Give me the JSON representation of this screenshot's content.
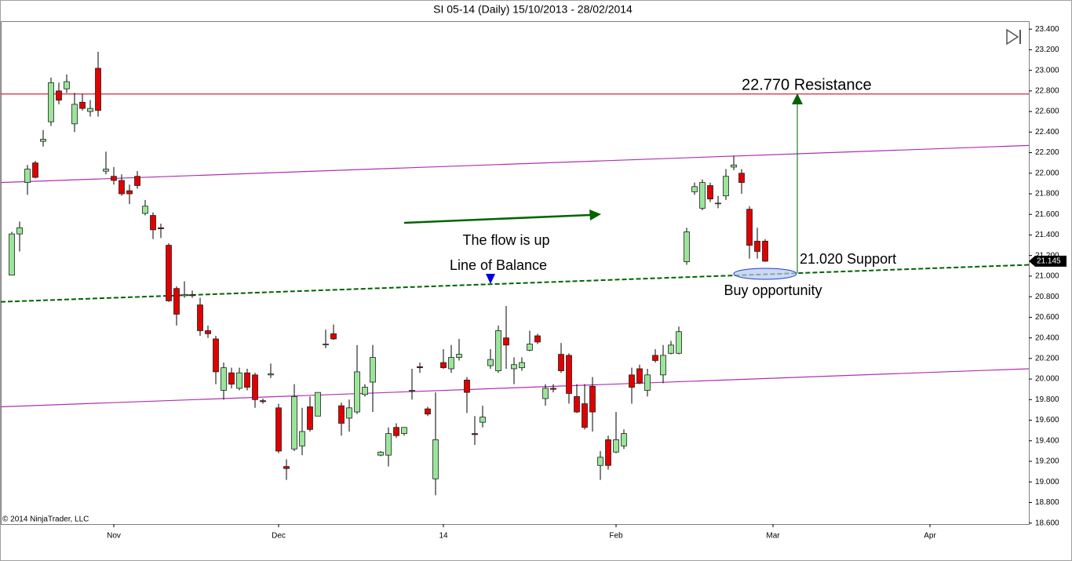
{
  "chart_data": {
    "type": "candlestick",
    "title": "SI 05-14 (Daily)  15/10/2013 - 28/02/2014",
    "copyright": "© 2014 NinjaTrader, LLC",
    "annotations": [
      "22.770 Resistance",
      "The flow is up",
      "Line of Balance",
      "21.020 Support",
      "Buy opportunity"
    ],
    "up_color": "#9be59b",
    "down_color": "#e00000",
    "xlim": [
      -1.4,
      129.6
    ],
    "ylim": [
      18.59,
      23.47
    ],
    "xticks": [
      {
        "value": 13,
        "label": "Nov"
      },
      {
        "value": 34,
        "label": "Dec"
      },
      {
        "value": 55,
        "label": "14"
      },
      {
        "value": 77,
        "label": "Feb"
      },
      {
        "value": 97,
        "label": "Mar"
      },
      {
        "value": 117,
        "label": "Apr"
      }
    ],
    "yticks": [
      {
        "value": 23.4,
        "label": "23.400"
      },
      {
        "value": 23.2,
        "label": "23.200"
      },
      {
        "value": 23.0,
        "label": "23.000"
      },
      {
        "value": 22.8,
        "label": "22.800"
      },
      {
        "value": 22.6,
        "label": "22.600"
      },
      {
        "value": 22.4,
        "label": "22.400"
      },
      {
        "value": 22.2,
        "label": "22.200"
      },
      {
        "value": 22.0,
        "label": "22.000"
      },
      {
        "value": 21.8,
        "label": "21.800"
      },
      {
        "value": 21.6,
        "label": "21.600"
      },
      {
        "value": 21.4,
        "label": "21.400"
      },
      {
        "value": 21.2,
        "label": "21.200"
      },
      {
        "value": 21.0,
        "label": "21.000"
      },
      {
        "value": 20.8,
        "label": "20.800"
      },
      {
        "value": 20.6,
        "label": "20.600"
      },
      {
        "value": 20.4,
        "label": "20.400"
      },
      {
        "value": 20.2,
        "label": "20.200"
      },
      {
        "value": 20.0,
        "label": "20.000"
      },
      {
        "value": 19.8,
        "label": "19.800"
      },
      {
        "value": 19.6,
        "label": "19.600"
      },
      {
        "value": 19.4,
        "label": "19.400"
      },
      {
        "value": 19.2,
        "label": "19.200"
      },
      {
        "value": 19.0,
        "label": "19.000"
      },
      {
        "value": 18.8,
        "label": "18.800"
      },
      {
        "value": 18.6,
        "label": "18.600"
      }
    ],
    "lines": [
      {
        "x": [
          -1.4,
          129.6
        ],
        "y": [
          22.77,
          22.77
        ],
        "color": "#c8102e",
        "dashed": false
      },
      {
        "x": [
          -1.4,
          129.6
        ],
        "y": [
          21.91,
          22.27
        ],
        "color": "#b030b0",
        "dashed": false
      },
      {
        "x": [
          -1.4,
          129.6
        ],
        "y": [
          20.75,
          21.11
        ],
        "color": "#006400",
        "dashed": true
      },
      {
        "x": [
          -1.4,
          129.6
        ],
        "y": [
          19.73,
          20.1
        ],
        "color": "#b030b0",
        "dashed": false
      }
    ],
    "open": [
      21.01,
      21.41,
      21.91,
      22.1,
      22.31,
      22.5,
      22.8,
      22.82,
      22.48,
      22.69,
      22.6,
      23.02,
      22.02,
      21.97,
      21.93,
      21.83,
      21.97,
      21.61,
      21.59,
      21.47,
      21.3,
      20.88,
      20.81,
      20.82,
      20.72,
      20.47,
      20.39,
      19.89,
      20.06,
      19.91,
      20.06,
      20.04,
      19.79,
      20.04,
      19.72,
      19.15,
      19.32,
      19.35,
      19.73,
      19.64,
      20.34,
      20.44,
      19.74,
      19.62,
      19.68,
      19.85,
      19.97,
      19.26,
      19.26,
      19.53,
      19.47,
      19.89,
      20.12,
      19.71,
      19.03,
      20.16,
      20.1,
      20.21,
      19.99,
      19.47,
      19.58,
      20.13,
      20.08,
      20.4,
      20.1,
      20.11,
      20.28,
      20.42,
      19.81,
      19.91,
      20.24,
      20.23,
      19.83,
      19.76,
      19.93,
      19.16,
      19.41,
      19.29,
      19.35,
      20.04,
      20.1,
      19.89,
      20.23,
      20.04,
      20.25,
      20.25,
      21.14,
      21.82,
      21.66,
      21.88,
      21.71,
      21.78,
      22.06,
      22.0,
      21.65,
      21.34,
      21.34
    ],
    "high": [
      21.43,
      21.53,
      22.08,
      22.12,
      22.42,
      22.93,
      22.88,
      22.96,
      22.78,
      22.77,
      22.71,
      23.18,
      22.21,
      22.06,
      21.99,
      21.89,
      22.02,
      21.74,
      21.62,
      21.51,
      21.32,
      20.9,
      20.95,
      20.86,
      20.79,
      20.52,
      20.42,
      20.16,
      20.11,
      20.11,
      20.1,
      20.06,
      19.81,
      20.15,
      19.76,
      19.22,
      19.95,
      19.72,
      19.83,
      19.87,
      20.48,
      20.53,
      19.77,
      19.8,
      20.33,
      19.95,
      20.33,
      19.3,
      19.53,
      19.57,
      19.53,
      20.1,
      20.16,
      19.73,
      19.87,
      20.29,
      20.33,
      20.39,
      20.02,
      19.64,
      19.74,
      20.29,
      20.52,
      20.71,
      20.21,
      20.21,
      20.47,
      20.44,
      19.95,
      19.95,
      20.35,
      20.25,
      19.95,
      19.95,
      20.02,
      19.3,
      19.45,
      19.68,
      19.51,
      20.11,
      20.14,
      20.1,
      20.29,
      20.33,
      20.37,
      20.51,
      21.47,
      21.91,
      21.94,
      21.91,
      21.78,
      22.04,
      22.17,
      22.04,
      21.68,
      21.47,
      21.36
    ],
    "low": [
      21.01,
      21.24,
      21.79,
      21.95,
      22.26,
      22.46,
      22.67,
      22.78,
      22.4,
      22.61,
      22.55,
      22.55,
      21.99,
      21.89,
      21.78,
      21.7,
      21.85,
      21.59,
      21.36,
      21.37,
      20.75,
      20.52,
      20.79,
      20.79,
      20.42,
      20.4,
      19.95,
      19.8,
      19.91,
      19.89,
      19.89,
      19.72,
      19.76,
      20.01,
      19.28,
      19.02,
      19.3,
      19.26,
      19.49,
      19.64,
      20.3,
      20.38,
      19.45,
      19.49,
      19.66,
      19.83,
      19.68,
      19.25,
      19.15,
      19.43,
      19.45,
      19.8,
      20.06,
      19.64,
      18.87,
      20.1,
      20.06,
      20.18,
      19.67,
      19.36,
      19.53,
      20.1,
      20.06,
      20.1,
      19.95,
      20.08,
      20.27,
      20.34,
      19.74,
      19.87,
      20.06,
      19.76,
      19.67,
      19.51,
      19.49,
      19.02,
      19.12,
      19.28,
      19.32,
      19.76,
      19.95,
      19.83,
      20.16,
      19.96,
      20.24,
      20.24,
      21.11,
      21.79,
      21.64,
      21.72,
      21.66,
      21.74,
      22.03,
      21.8,
      21.17,
      21.17,
      21.14
    ],
    "close": [
      21.41,
      21.47,
      22.04,
      21.96,
      22.33,
      22.88,
      22.71,
      22.89,
      22.67,
      22.63,
      22.63,
      22.61,
      22.04,
      21.93,
      21.8,
      21.8,
      21.88,
      21.68,
      21.45,
      21.46,
      20.76,
      20.63,
      20.82,
      20.81,
      20.47,
      20.44,
      20.07,
      20.11,
      19.95,
      20.06,
      19.92,
      19.8,
      19.78,
      20.05,
      19.3,
      19.13,
      19.83,
      19.49,
      19.51,
      19.87,
      20.34,
      20.39,
      19.57,
      19.72,
      20.07,
      19.92,
      20.21,
      19.29,
      19.47,
      19.45,
      19.53,
      19.89,
      20.11,
      19.66,
      19.41,
      20.11,
      20.21,
      20.24,
      19.87,
      19.46,
      19.63,
      20.19,
      20.47,
      20.33,
      20.14,
      20.16,
      20.34,
      20.36,
      19.91,
      19.9,
      20.08,
      19.86,
      19.68,
      19.53,
      19.68,
      19.24,
      19.16,
      19.41,
      19.47,
      19.92,
      19.96,
      20.04,
      20.18,
      20.23,
      20.33,
      20.46,
      21.43,
      21.87,
      21.91,
      21.75,
      21.71,
      21.97,
      22.08,
      21.91,
      21.3,
      21.24,
      21.145
    ]
  }
}
